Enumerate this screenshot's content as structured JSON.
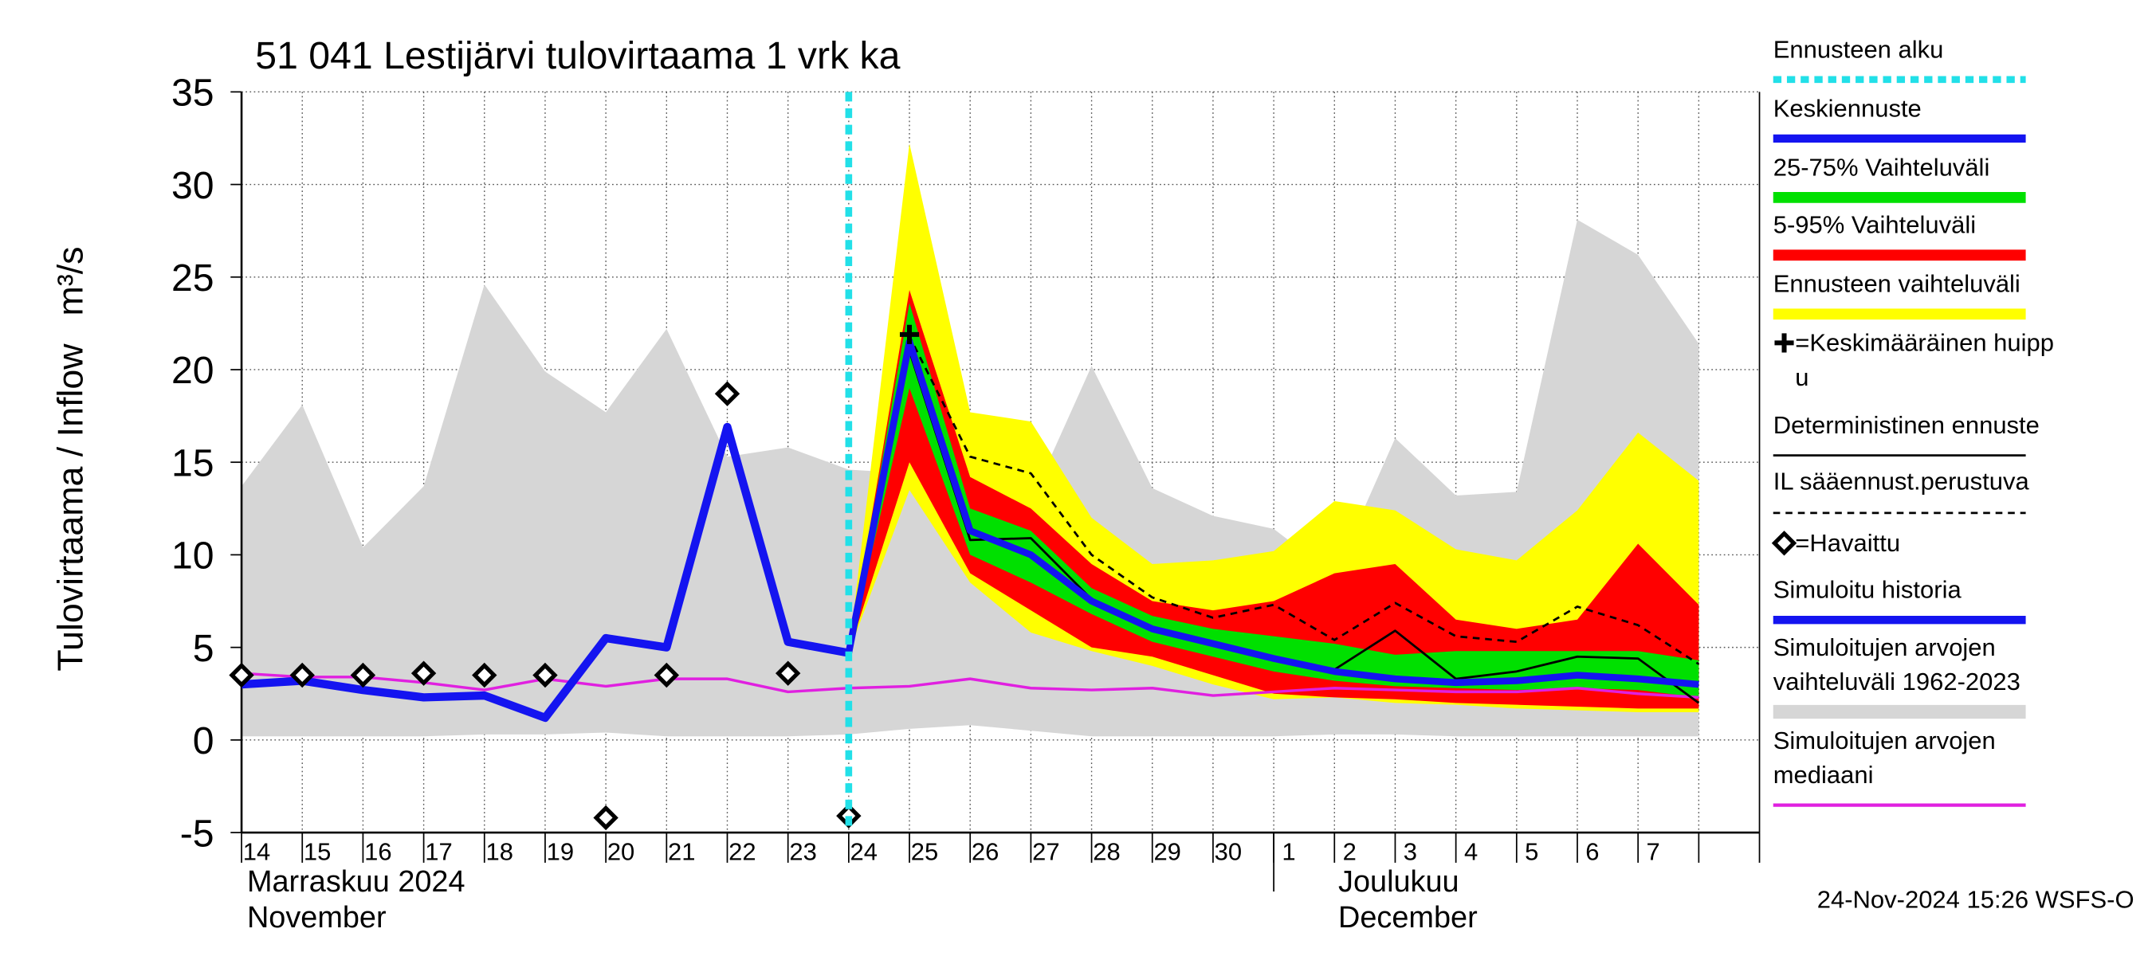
{
  "chart_data": {
    "type": "line",
    "title": "51 041 Lestijärvi tulovirtaama 1 vrk ka",
    "ylabel": "Tulovirtaama / Inflow",
    "yunit": "m³/s",
    "categories": [
      "14",
      "15",
      "16",
      "17",
      "18",
      "19",
      "20",
      "21",
      "22",
      "23",
      "24",
      "25",
      "26",
      "27",
      "28",
      "29",
      "30",
      "1",
      "2",
      "3",
      "4",
      "5",
      "6",
      "7",
      null
    ],
    "x_groups": [
      {
        "lines": [
          "Marraskuu 2024",
          "November"
        ],
        "start": 0
      },
      {
        "lines": [
          "Joulukuu",
          "December"
        ],
        "start": 17
      }
    ],
    "ylim": [
      -5,
      35
    ],
    "yticks": [
      -5,
      0,
      5,
      10,
      15,
      20,
      25,
      30,
      35
    ],
    "grid": true,
    "forecast_start": {
      "name": "Ennusteen alku",
      "color": "#22e0e8",
      "index": 10
    },
    "bands": [
      {
        "name": "Simuloitujen arvojen\nvaihteluväli 1962-2023",
        "color": "#d6d6d6",
        "low": [
          0.2,
          0.2,
          0.2,
          0.2,
          0.3,
          0.3,
          0.4,
          0.2,
          0.2,
          0.2,
          0.3,
          0.6,
          0.8,
          0.5,
          0.2,
          0.2,
          0.2,
          0.2,
          0.3,
          0.3,
          0.2,
          0.2,
          0.2,
          0.2,
          0.2
        ],
        "high": [
          13.7,
          18.1,
          10.4,
          13.7,
          24.6,
          19.9,
          17.7,
          22.2,
          15.3,
          15.8,
          14.6,
          14.4,
          13.2,
          12.9,
          20.2,
          13.6,
          12.1,
          11.4,
          8.9,
          16.3,
          13.2,
          13.4,
          28.1,
          26.2,
          21.4
        ]
      },
      {
        "name": "Ennusteen vaihteluväli",
        "color": "#ffff00",
        "low": [
          null,
          null,
          null,
          null,
          null,
          null,
          null,
          null,
          null,
          null,
          4.7,
          13.5,
          8.5,
          5.8,
          4.8,
          4.0,
          3.0,
          2.2,
          2.3,
          2.0,
          1.9,
          1.7,
          1.6,
          1.5,
          1.5
        ],
        "high": [
          null,
          null,
          null,
          null,
          null,
          null,
          null,
          null,
          null,
          null,
          4.7,
          32.2,
          17.7,
          17.2,
          12.0,
          9.5,
          9.7,
          10.2,
          12.9,
          12.4,
          10.3,
          9.7,
          12.4,
          16.6,
          14.0
        ]
      },
      {
        "name": "5-95% Vaihteluväli",
        "color": "#ff0000",
        "low": [
          null,
          null,
          null,
          null,
          null,
          null,
          null,
          null,
          null,
          null,
          4.7,
          15.0,
          9.0,
          7.0,
          5.0,
          4.5,
          3.5,
          2.5,
          2.3,
          2.2,
          2.0,
          1.9,
          1.8,
          1.7,
          1.7
        ],
        "high": [
          null,
          null,
          null,
          null,
          null,
          null,
          null,
          null,
          null,
          null,
          4.7,
          24.3,
          14.2,
          12.5,
          9.5,
          7.5,
          7.0,
          7.5,
          9.0,
          9.5,
          6.5,
          6.0,
          6.5,
          10.6,
          7.3
        ]
      },
      {
        "name": "25-75% Vaihteluväli",
        "color": "#00e000",
        "low": [
          null,
          null,
          null,
          null,
          null,
          null,
          null,
          null,
          null,
          null,
          4.7,
          19.0,
          10.0,
          8.5,
          6.8,
          5.3,
          4.5,
          3.7,
          3.2,
          2.9,
          2.8,
          2.7,
          2.8,
          2.7,
          2.3
        ],
        "high": [
          null,
          null,
          null,
          null,
          null,
          null,
          null,
          null,
          null,
          null,
          4.7,
          23.6,
          12.5,
          11.3,
          8.2,
          6.7,
          6.0,
          5.6,
          5.2,
          4.6,
          4.8,
          4.8,
          4.8,
          4.8,
          4.3
        ]
      }
    ],
    "series": [
      {
        "name": "Simuloitujen arvojen\nmediaani",
        "color": "#e020e0",
        "width": 2,
        "dash": false,
        "values": [
          3.6,
          3.4,
          3.4,
          3.1,
          2.7,
          3.3,
          2.9,
          3.3,
          3.3,
          2.6,
          2.8,
          2.9,
          3.3,
          2.8,
          2.7,
          2.8,
          2.4,
          2.6,
          2.8,
          2.7,
          2.6,
          2.6,
          2.8,
          2.5,
          2.3
        ]
      },
      {
        "name": "Simuloitu historia",
        "color": "#1414f0",
        "width": 6,
        "dash": false,
        "values": [
          3.0,
          3.2,
          2.7,
          2.3,
          2.4,
          1.2,
          5.5,
          5.0,
          16.9,
          5.3,
          4.7,
          null,
          null,
          null,
          null,
          null,
          null,
          null,
          null,
          null,
          null,
          null,
          null,
          null,
          null
        ]
      },
      {
        "name": "IL sääennust.perustuva",
        "color": "#000000",
        "width": 1.6,
        "dash": true,
        "values": [
          null,
          null,
          null,
          null,
          null,
          null,
          null,
          null,
          null,
          null,
          4.7,
          21.8,
          15.3,
          14.4,
          10.0,
          7.7,
          6.6,
          7.3,
          5.4,
          7.4,
          5.6,
          5.3,
          7.2,
          6.2,
          4.1
        ]
      },
      {
        "name": "Deterministinen ennuste",
        "color": "#000000",
        "width": 1.6,
        "dash": false,
        "values": [
          null,
          null,
          null,
          null,
          null,
          null,
          null,
          null,
          null,
          null,
          4.7,
          21.0,
          10.8,
          10.9,
          7.6,
          5.9,
          5.1,
          4.4,
          3.8,
          5.9,
          3.3,
          3.7,
          4.5,
          4.4,
          2.0
        ]
      },
      {
        "name": "Keskiennuste",
        "color": "#1414f0",
        "width": 5,
        "dash": false,
        "values": [
          null,
          null,
          null,
          null,
          null,
          null,
          null,
          null,
          null,
          null,
          4.7,
          21.5,
          11.3,
          10.0,
          7.5,
          6.0,
          5.2,
          4.4,
          3.7,
          3.3,
          3.1,
          3.2,
          3.5,
          3.3,
          3.0
        ]
      }
    ],
    "markers": [
      {
        "name": "=Keskimääräinen huipp\nu",
        "symbol": "plus",
        "color": "#000000",
        "values": [
          null,
          null,
          null,
          null,
          null,
          null,
          null,
          null,
          null,
          null,
          null,
          21.9,
          null,
          null,
          null,
          null,
          null,
          null,
          null,
          null,
          null,
          null,
          null,
          null,
          null
        ]
      },
      {
        "name": "=Havaittu",
        "symbol": "diamond",
        "color": "#000000",
        "values": [
          3.5,
          3.5,
          3.5,
          3.6,
          3.5,
          3.5,
          -4.2,
          3.5,
          18.7,
          3.6,
          -4.1,
          null,
          null,
          null,
          null,
          null,
          null,
          null,
          null,
          null,
          null,
          null,
          null,
          null,
          null
        ]
      }
    ]
  },
  "footer": "24-Nov-2024 15:26 WSFS-O"
}
